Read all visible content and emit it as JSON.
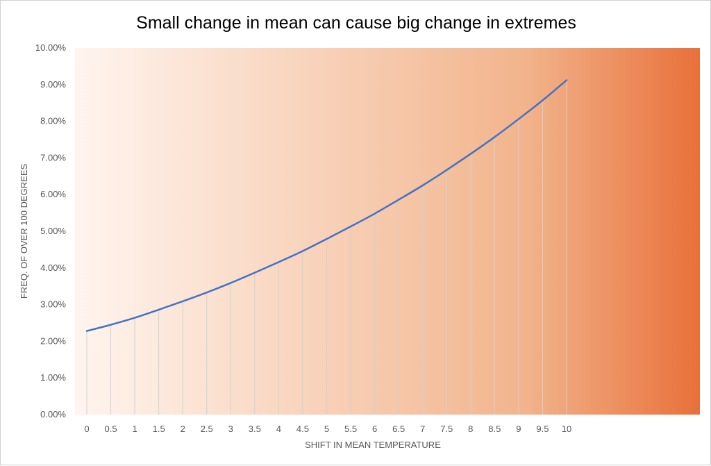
{
  "chart_data": {
    "type": "line",
    "title": "Small change in mean can cause big change in extremes",
    "xlabel": "SHIFT IN MEAN TEMPERATURE",
    "ylabel": "FREQ. OF OVER 100 DEGREES",
    "categories": [
      "0",
      "0.5",
      "1",
      "1.5",
      "2",
      "2.5",
      "3",
      "3.5",
      "4",
      "4.5",
      "5",
      "5.5",
      "6",
      "6.5",
      "7",
      "7.5",
      "8",
      "8.5",
      "9",
      "9.5",
      "10"
    ],
    "x": [
      0,
      0.5,
      1,
      1.5,
      2,
      2.5,
      3,
      3.5,
      4,
      4.5,
      5,
      5.5,
      6,
      6.5,
      7,
      7.5,
      8,
      8.5,
      9,
      9.5,
      10
    ],
    "values": [
      2.28,
      2.45,
      2.64,
      2.86,
      3.09,
      3.33,
      3.59,
      3.87,
      4.16,
      4.46,
      4.79,
      5.13,
      5.48,
      5.86,
      6.25,
      6.67,
      7.11,
      7.57,
      8.06,
      8.57,
      9.12
    ],
    "y_ticks": [
      "0.00%",
      "1.00%",
      "2.00%",
      "3.00%",
      "4.00%",
      "5.00%",
      "6.00%",
      "7.00%",
      "8.00%",
      "9.00%",
      "10.00%"
    ],
    "ylim": [
      0,
      10
    ],
    "y_unit": "%",
    "grid": false,
    "drop_lines": true,
    "legend": "none",
    "line_color": "#4472c4",
    "drop_line_color": "#d0d0d0",
    "background_gradient": [
      "#fff5ef",
      "#f2b48c",
      "#e8703a"
    ]
  }
}
